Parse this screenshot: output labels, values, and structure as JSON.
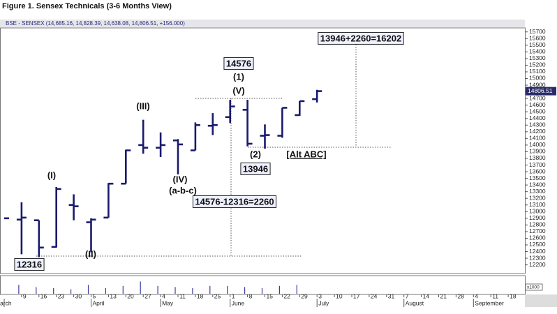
{
  "title": "Figure 1. Sensex Technicals (3-6 Months View)",
  "chart_data": {
    "type": "ohlc",
    "header": "BSE - SENSEX (14,685.16, 14,828.39, 14,638.08, 14,806.51, +156.000)",
    "last_price_label": "14806.51",
    "categories": [
      null,
      "9",
      "16",
      "23",
      "30",
      "5",
      "13",
      "20",
      "27",
      "4",
      "11",
      "18",
      "25",
      "1",
      "8",
      "15",
      "22",
      "29",
      "3",
      "10",
      "17",
      "24",
      "31",
      "7",
      "14",
      "21",
      "28",
      "4",
      "11",
      "18",
      null
    ],
    "months": [
      "March",
      null,
      null,
      null,
      null,
      "April",
      null,
      null,
      null,
      "May",
      null,
      null,
      null,
      "June",
      null,
      null,
      null,
      null,
      "July",
      null,
      null,
      null,
      null,
      "August",
      null,
      null,
      null,
      "September",
      null,
      null,
      null
    ],
    "open": [
      null,
      12880,
      12870,
      12470,
      13100,
      12840,
      12910,
      13420,
      14000,
      13960,
      14070,
      13920,
      14290,
      14420,
      14530,
      14140,
      14140,
      14450,
      14690,
      null,
      null,
      null,
      null,
      null,
      null,
      null,
      null,
      null,
      null,
      null,
      null
    ],
    "high": [
      null,
      13140,
      12870,
      13370,
      13260,
      12900,
      13430,
      13930,
      14380,
      14190,
      14090,
      14340,
      14480,
      14680,
      14680,
      14310,
      14560,
      14660,
      14830,
      null,
      null,
      null,
      null,
      null,
      null,
      null,
      null,
      null,
      null,
      null,
      null
    ],
    "low": [
      null,
      12360,
      12316,
      12460,
      12870,
      12390,
      12910,
      13420,
      13870,
      13820,
      13560,
      13920,
      14150,
      14330,
      13980,
      13946,
      14110,
      14440,
      14640,
      null,
      null,
      null,
      null,
      null,
      null,
      null,
      null,
      null,
      null,
      null,
      null
    ],
    "close": [
      12900,
      12910,
      12460,
      13340,
      13080,
      12880,
      13420,
      13920,
      13960,
      14000,
      14010,
      14300,
      14300,
      14580,
      14020,
      14150,
      14560,
      14660,
      14810,
      null,
      null,
      null,
      null,
      null,
      null,
      null,
      null,
      null,
      null,
      null,
      null
    ],
    "color": "#1a1a6e",
    "ylim": [
      12070,
      15760
    ],
    "yticks": [
      12200,
      12300,
      12400,
      12500,
      12600,
      12700,
      12800,
      12900,
      13000,
      13100,
      13200,
      13300,
      13400,
      13500,
      13600,
      13700,
      13800,
      13900,
      14000,
      14100,
      14200,
      14300,
      14400,
      14500,
      14600,
      14700,
      14800,
      14900,
      15000,
      15100,
      15200,
      15300,
      15400,
      15500,
      15600,
      15700
    ],
    "volume": {
      "label": "x1000",
      "ylim": [
        0,
        30
      ],
      "values": [
        null,
        16,
        12,
        10,
        8,
        16,
        10,
        14,
        22,
        14,
        12,
        10,
        14,
        14,
        12,
        10,
        14,
        16,
        null,
        null,
        null,
        null,
        null,
        null,
        null,
        null,
        null,
        null,
        null,
        null,
        null
      ]
    },
    "annotations": [
      "(I)",
      "(II)",
      "(III)",
      "(IV)",
      "(a-b-c)",
      "(V)",
      "(1)",
      "(2)",
      "14576",
      "13946",
      "12316",
      "14576-12316=2260",
      "13946+2260=16202",
      "[Alt ABC]"
    ]
  }
}
